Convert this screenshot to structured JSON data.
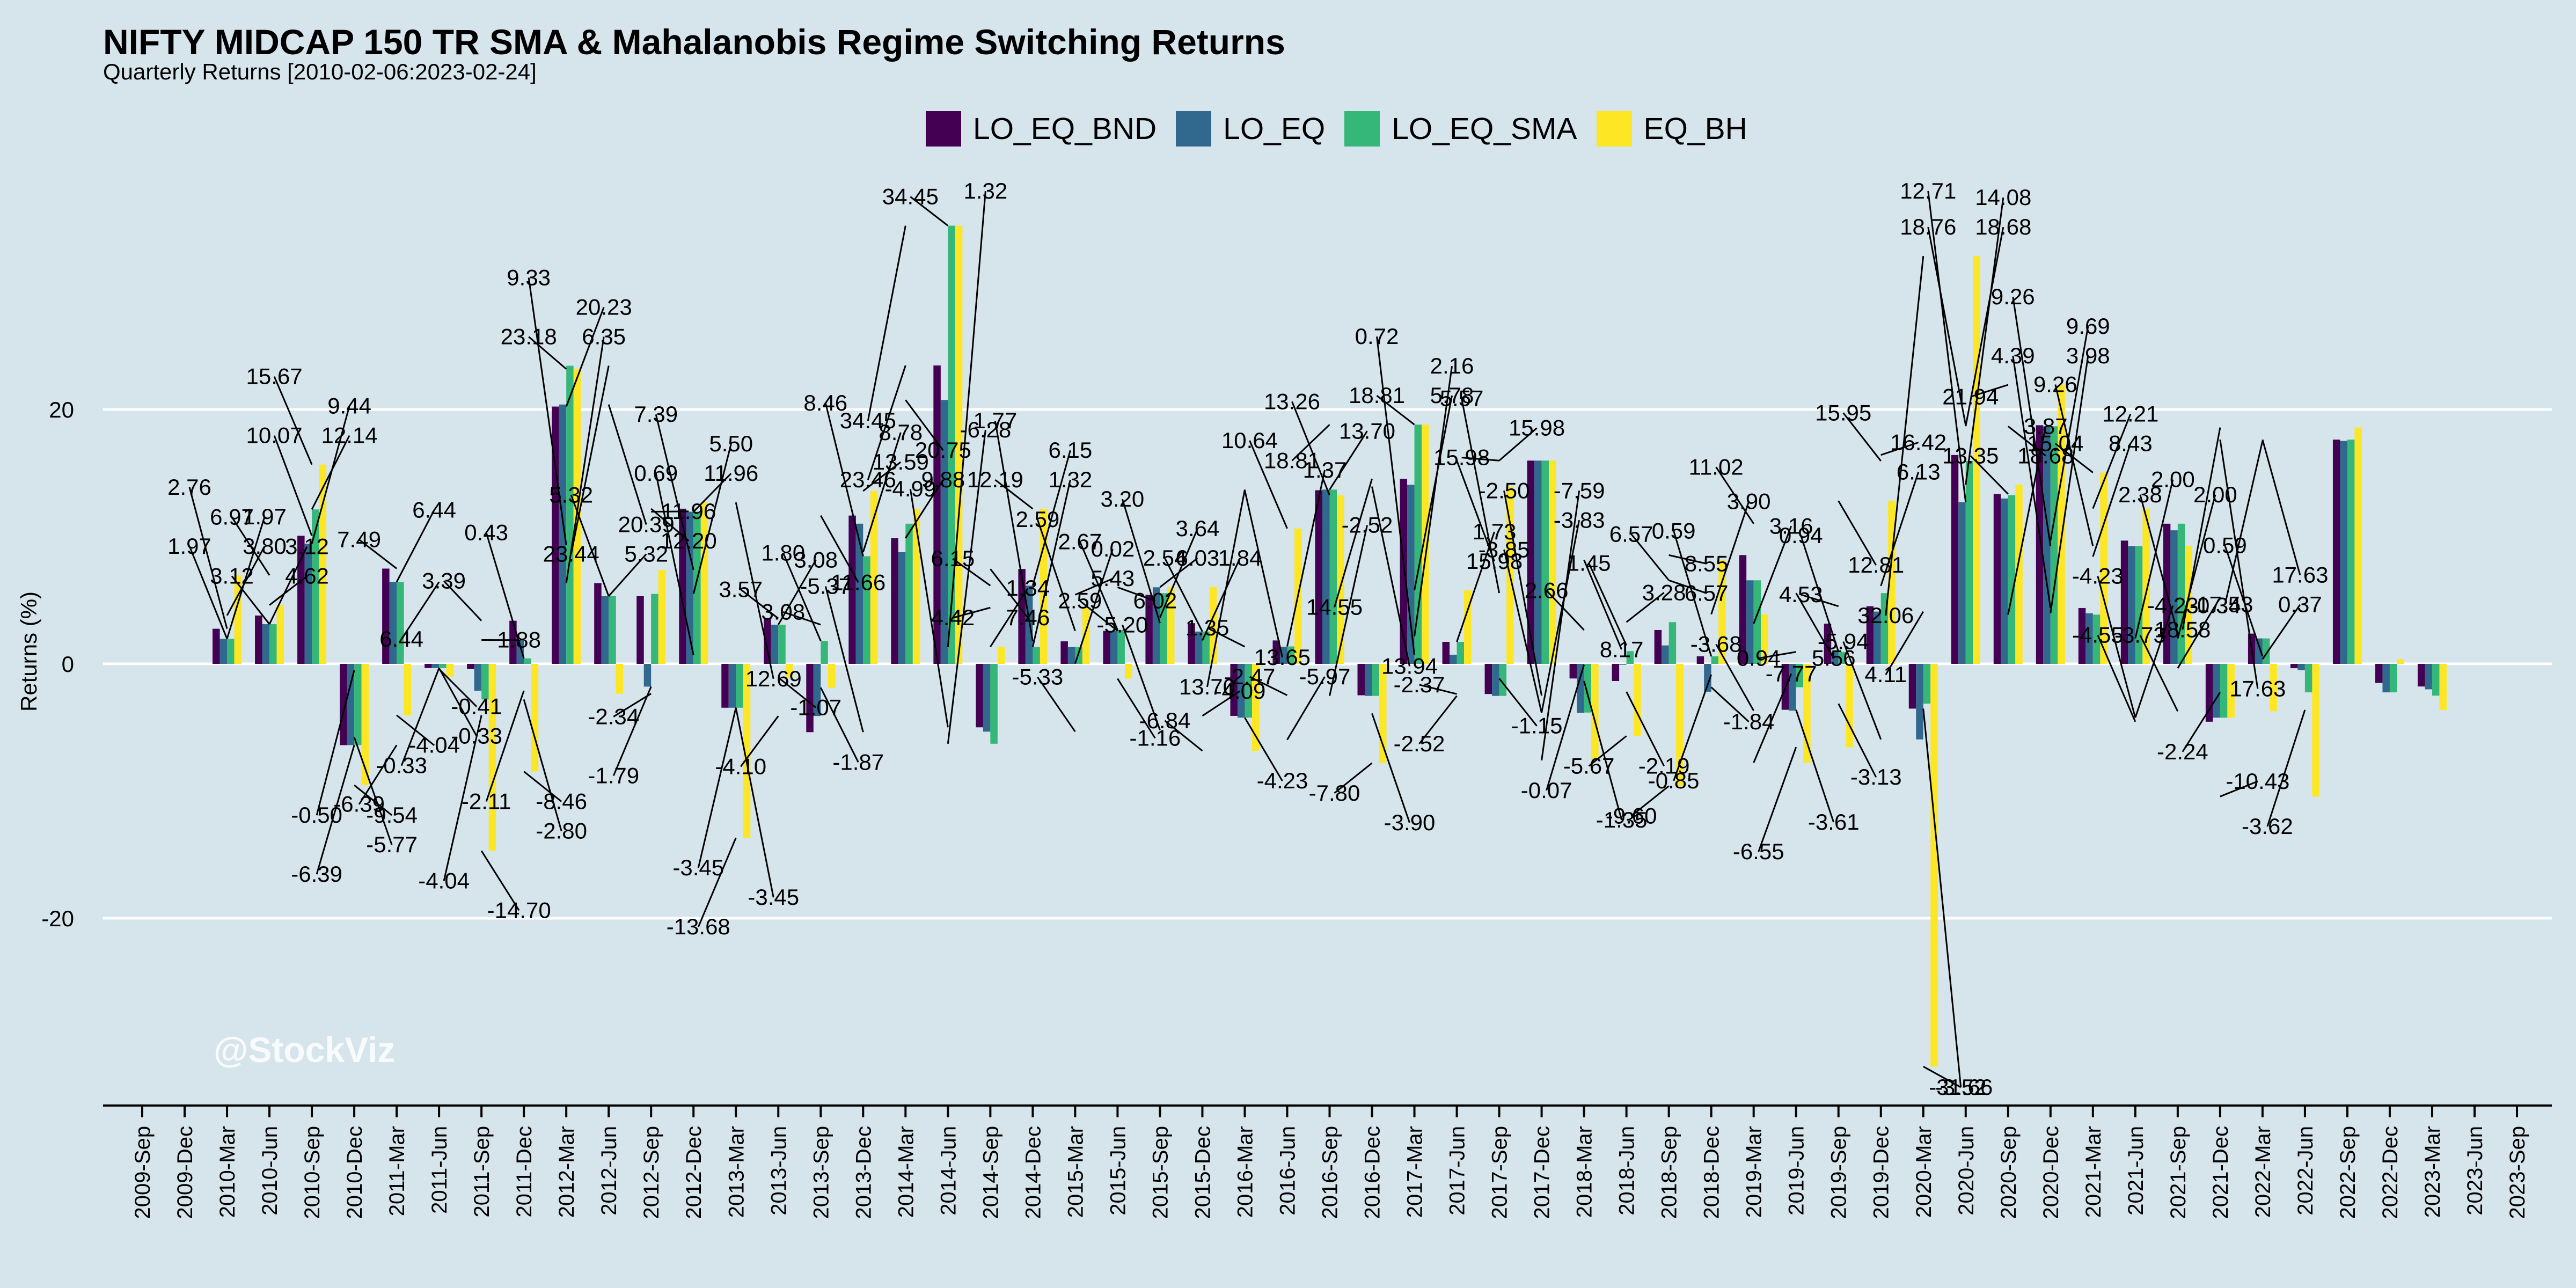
{
  "colors": {
    "background": "#d6e4ec",
    "grid": "#ffffff",
    "LO_EQ_BND": "#440154",
    "LO_EQ": "#31688e",
    "LO_EQ_SMA": "#35b779",
    "EQ_BH": "#fde725",
    "watermark": "#ffffff"
  },
  "watermark": "@StockViz",
  "chart_data": {
    "type": "bar",
    "title": "NIFTY MIDCAP 150 TR SMA & Mahalanobis Regime Switching Returns",
    "subtitle": "Quarterly Returns [2010-02-06:2023-02-24]",
    "xlabel": "",
    "ylabel": "Returns (%)",
    "ylim": [
      -35,
      40
    ],
    "yticks": [
      -20,
      0,
      20
    ],
    "grid": true,
    "legend_position": "top",
    "categories": [
      "2009-Sep",
      "2009-Dec",
      "2010-Mar",
      "2010-Jun",
      "2010-Sep",
      "2010-Dec",
      "2011-Mar",
      "2011-Jun",
      "2011-Sep",
      "2011-Dec",
      "2012-Mar",
      "2012-Jun",
      "2012-Sep",
      "2012-Dec",
      "2013-Mar",
      "2013-Jun",
      "2013-Sep",
      "2013-Dec",
      "2014-Mar",
      "2014-Jun",
      "2014-Sep",
      "2014-Dec",
      "2015-Mar",
      "2015-Jun",
      "2015-Sep",
      "2015-Dec",
      "2016-Mar",
      "2016-Jun",
      "2016-Sep",
      "2016-Dec",
      "2017-Mar",
      "2017-Jun",
      "2017-Sep",
      "2017-Dec",
      "2018-Mar",
      "2018-Jun",
      "2018-Sep",
      "2018-Dec",
      "2019-Mar",
      "2019-Jun",
      "2019-Sep",
      "2019-Dec",
      "2020-Mar",
      "2020-Jun",
      "2020-Sep",
      "2020-Dec",
      "2021-Mar",
      "2021-Jun",
      "2021-Sep",
      "2021-Dec",
      "2022-Mar",
      "2022-Jun",
      "2022-Sep",
      "2022-Dec",
      "2023-Mar",
      "2023-Jun",
      "2023-Sep"
    ],
    "series": [
      {
        "name": "LO_EQ_BND",
        "values": [
          null,
          null,
          2.76,
          3.8,
          10.07,
          -6.39,
          7.49,
          -0.33,
          -0.41,
          3.39,
          20.23,
          6.35,
          5.32,
          12.2,
          -3.45,
          3.57,
          -5.37,
          11.66,
          9.88,
          23.46,
          -4.99,
          7.46,
          1.77,
          2.59,
          5.43,
          3.2,
          -4.09,
          1.84,
          13.65,
          -2.47,
          14.55,
          1.73,
          -2.37,
          15.98,
          -1.15,
          -1.35,
          2.66,
          0.59,
          8.55,
          -3.61,
          3.16,
          4.53,
          -3.52,
          16.42,
          13.35,
          18.76,
          4.39,
          9.69,
          11.02,
          -4.55,
          2.38,
          -0.34,
          17.63,
          -1.5,
          -1.78,
          null,
          null
        ]
      },
      {
        "name": "LO_EQ",
        "values": [
          null,
          null,
          1.97,
          3.12,
          9.44,
          -6.39,
          6.44,
          -0.33,
          -2.11,
          1.88,
          20.39,
          5.32,
          -1.79,
          11.96,
          -3.45,
          3.08,
          -4.1,
          11.02,
          8.78,
          20.75,
          -5.33,
          6.15,
          1.32,
          2.59,
          6.02,
          2.54,
          -4.23,
          1.35,
          13.7,
          -2.52,
          14.08,
          0.72,
          -2.52,
          15.98,
          -3.85,
          -0.07,
          1.45,
          -2.19,
          6.57,
          -3.68,
          0.94,
          4.11,
          -5.94,
          12.71,
          13.0,
          18.68,
          3.98,
          9.26,
          10.5,
          -4.23,
          2.0,
          -0.5,
          17.53,
          -2.24,
          -2.0,
          null,
          null
        ]
      },
      {
        "name": "LO_EQ_SMA",
        "values": [
          null,
          null,
          1.97,
          3.12,
          12.14,
          -6.39,
          6.44,
          -0.33,
          -2.8,
          0.43,
          23.44,
          5.32,
          5.5,
          11.96,
          -3.45,
          3.08,
          1.8,
          8.46,
          11.02,
          34.45,
          -6.28,
          1.32,
          1.34,
          2.67,
          5.56,
          2.54,
          -4.23,
          1.37,
          13.7,
          -2.52,
          18.81,
          1.73,
          -2.52,
          15.98,
          -3.83,
          1.0,
          3.28,
          0.59,
          6.57,
          -1.84,
          0.94,
          5.56,
          -3.13,
          15.95,
          13.26,
          18.68,
          3.87,
          9.26,
          11.02,
          -4.23,
          2.0,
          -2.24,
          17.63,
          -2.24,
          -2.5,
          null,
          null
        ]
      },
      {
        "name": "EQ_BH",
        "values": [
          null,
          null,
          6.97,
          4.62,
          15.67,
          -9.54,
          -4.04,
          -1.0,
          -14.7,
          -8.46,
          23.18,
          -2.34,
          7.39,
          12.69,
          -13.68,
          -1.07,
          -1.87,
          13.59,
          12.19,
          34.45,
          1.34,
          12.19,
          4.42,
          -1.16,
          6.03,
          6.03,
          -6.84,
          10.64,
          13.26,
          -7.8,
          18.81,
          5.78,
          13.94,
          15.98,
          -7.59,
          -5.67,
          -9.6,
          8.17,
          3.9,
          -7.77,
          -6.55,
          12.81,
          -31.66,
          32.06,
          14.08,
          21.94,
          15.04,
          12.21,
          9.26,
          -4.23,
          -3.73,
          -10.43,
          18.58,
          0.37,
          -3.62,
          null,
          null
        ]
      }
    ],
    "annotations": [
      "1.97",
      "1.97",
      "2.76",
      "3.80",
      "3.12",
      "3.12",
      "6.97",
      "4.62",
      "10.07",
      "9.44",
      "15.67",
      "12.14",
      "-0.50",
      "-5.77",
      "-6.39",
      "-9.54",
      "7.49",
      "6.44",
      "-6.39",
      "-4.04",
      "6.44",
      "-0.33",
      "-0.33",
      "-0.41",
      "-4.04",
      "-14.70",
      "3.39",
      "1.88",
      "-2.11",
      "-2.80",
      "0.43",
      "-8.46",
      "23.18",
      "20.23",
      "9.33",
      "6.35",
      "23.44",
      "20.39",
      "5.32",
      "5.32",
      "-2.34",
      "11.96",
      "-1.79",
      "12.20",
      "0.69",
      "5.50",
      "7.39",
      "11.96",
      "-3.45",
      "-3.45",
      "-13.68",
      "12.69",
      "3.57",
      "3.08",
      "-4.10",
      "-1.07",
      "3.08",
      "11.66",
      "1.80",
      "-1.87",
      "-5.37",
      "8.78",
      "8.46",
      "13.59",
      "23.46",
      "20.75",
      "34.45",
      "9.88",
      "34.45",
      "1.32",
      "-4.99",
      "-6.28",
      "4.42",
      "1.34",
      "6.15",
      "7.46",
      "12.19",
      "6.15",
      "1.77",
      "1.32",
      "-5.33",
      "0.02",
      "2.59",
      "5.43",
      "2.59",
      "-1.16",
      "2.67",
      "6.02",
      "-5.20",
      "3.64",
      "3.20",
      "6.03",
      "2.54",
      "-4.09",
      "-6.84",
      "1.84",
      "13.70",
      "13.65",
      "1.35",
      "-4.23",
      "-2.47",
      "1.37",
      "10.64",
      "-5.97",
      "18.81",
      "13.70",
      "13.26",
      "-2.52",
      "-7.80",
      "-3.90",
      "14.55",
      "13.94",
      "18.81",
      "2.16",
      "0.72",
      "5.78",
      "-2.37",
      "1.73",
      "-2.52",
      "15.98",
      "15.98",
      "15.98",
      "5.57",
      "-1.15",
      "-2.50",
      "-3.83",
      "-3.85",
      "-7.59",
      "-0.07",
      "-1.35",
      "2.66",
      "8.17",
      "-5.67",
      "3.28",
      "1.45",
      "-2.19",
      "-9.60",
      "8.55",
      "6.57",
      "6.57",
      "0.59",
      "3.90",
      "-0.85",
      "-1.84",
      "-3.68",
      "-7.77",
      "11.02",
      "3.16",
      "0.94",
      "-3.61",
      "-6.55",
      "5.56",
      "4.53",
      "12.81",
      "0.94",
      "-3.13",
      "-5.94",
      "16.42",
      "15.95",
      "6.13",
      "4.11",
      "-3.52",
      "32.06",
      "-31.66",
      "18.76",
      "14.08",
      "12.71",
      "18.68",
      "13.35",
      "3.87",
      "21.94",
      "18.68",
      "4.39",
      "9.69",
      "9.26",
      "3.98",
      "15.04",
      "12.21",
      "9.26",
      "8.43",
      "-4.23",
      "-4.23",
      "-4.55",
      "2.00",
      "2.38",
      "-0.34",
      "-3.73",
      "2.00",
      "-2.24",
      "-10.43",
      "18.58",
      "17.63",
      "17.53",
      "17.63",
      "0.59",
      "0.37",
      "-3.62"
    ]
  }
}
